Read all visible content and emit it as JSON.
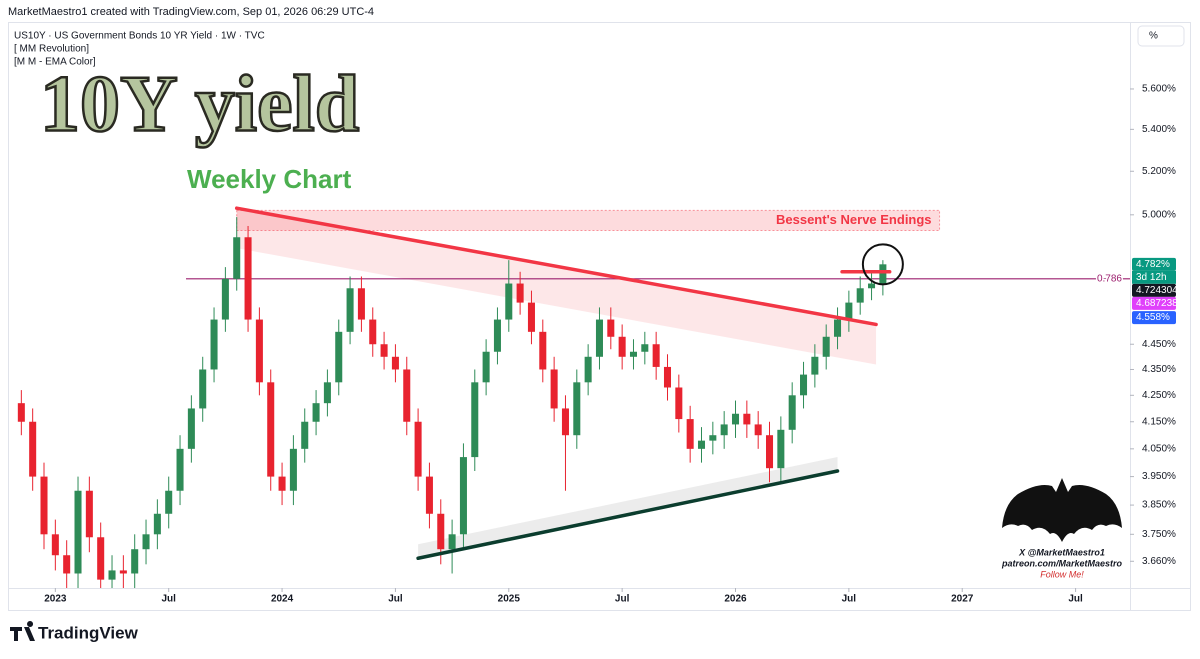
{
  "header": {
    "credit": "MarketMaestro1 created with TradingView.com, Sep 01, 2026 06:29 UTC-4",
    "symbol": "US10Y · US Government Bonds 10 YR Yield · 1W · TVC",
    "indicator_1": "[ MM Revolution]",
    "indicator_2": "[M M - EMA Color]",
    "overlay_title": "10Y yield",
    "overlay_subtitle": "Weekly Chart",
    "unit_button": "%"
  },
  "chart_data": {
    "type": "candlestick",
    "log_scale": true,
    "grid": false,
    "up_color": "#2e8b57",
    "down_color": "#e8232f",
    "x": [
      2022.85,
      2022.9,
      2022.95,
      2023.0,
      2023.05,
      2023.1,
      2023.15,
      2023.2,
      2023.25,
      2023.3,
      2023.35,
      2023.4,
      2023.45,
      2023.5,
      2023.55,
      2023.6,
      2023.65,
      2023.7,
      2023.75,
      2023.8,
      2023.85,
      2023.9,
      2023.95,
      2024.0,
      2024.05,
      2024.1,
      2024.15,
      2024.2,
      2024.25,
      2024.3,
      2024.35,
      2024.4,
      2024.45,
      2024.5,
      2024.55,
      2024.6,
      2024.65,
      2024.7,
      2024.75,
      2024.8,
      2024.85,
      2024.9,
      2024.95,
      2025.0,
      2025.05,
      2025.1,
      2025.15,
      2025.2,
      2025.25,
      2025.3,
      2025.35,
      2025.4,
      2025.45,
      2025.5,
      2025.55,
      2025.6,
      2025.65,
      2025.7,
      2025.75,
      2025.8,
      2025.85,
      2025.9,
      2025.95,
      2026.0,
      2026.05,
      2026.1,
      2026.15,
      2026.2,
      2026.25,
      2026.3,
      2026.35,
      2026.4,
      2026.45,
      2026.5,
      2026.55,
      2026.6,
      2026.65
    ],
    "open": [
      4.22,
      4.15,
      3.95,
      3.75,
      3.68,
      3.62,
      3.9,
      3.74,
      3.6,
      3.63,
      3.62,
      3.7,
      3.75,
      3.82,
      3.9,
      4.05,
      4.2,
      4.35,
      4.55,
      4.72,
      4.9,
      4.55,
      4.3,
      3.95,
      3.9,
      4.05,
      4.15,
      4.22,
      4.3,
      4.5,
      4.68,
      4.55,
      4.45,
      4.4,
      4.35,
      4.15,
      3.95,
      3.82,
      3.7,
      3.75,
      4.02,
      4.3,
      4.42,
      4.55,
      4.7,
      4.62,
      4.5,
      4.35,
      4.2,
      4.1,
      4.3,
      4.4,
      4.55,
      4.48,
      4.4,
      4.42,
      4.45,
      4.36,
      4.28,
      4.16,
      4.05,
      4.08,
      4.1,
      4.14,
      4.18,
      4.14,
      4.1,
      3.98,
      4.12,
      4.25,
      4.33,
      4.4,
      4.48,
      4.55,
      4.62,
      4.68,
      4.7
    ],
    "high": [
      4.27,
      4.2,
      4.0,
      3.8,
      3.73,
      3.95,
      3.95,
      3.79,
      3.68,
      3.68,
      3.75,
      3.8,
      3.87,
      3.95,
      4.1,
      4.25,
      4.4,
      4.6,
      4.77,
      4.99,
      4.95,
      4.6,
      4.35,
      4.0,
      4.1,
      4.2,
      4.27,
      4.35,
      4.55,
      4.73,
      4.73,
      4.6,
      4.5,
      4.45,
      4.4,
      4.2,
      4.0,
      3.87,
      3.8,
      4.07,
      4.35,
      4.47,
      4.6,
      4.8,
      4.75,
      4.67,
      4.55,
      4.4,
      4.25,
      4.35,
      4.45,
      4.6,
      4.6,
      4.53,
      4.47,
      4.5,
      4.5,
      4.41,
      4.33,
      4.21,
      4.13,
      4.15,
      4.19,
      4.23,
      4.23,
      4.19,
      4.15,
      4.17,
      4.3,
      4.38,
      4.45,
      4.53,
      4.6,
      4.67,
      4.73,
      4.75,
      4.8
    ],
    "low": [
      4.1,
      3.9,
      3.7,
      3.63,
      3.57,
      3.57,
      3.69,
      3.55,
      3.55,
      3.57,
      3.57,
      3.65,
      3.7,
      3.77,
      3.85,
      4.0,
      4.15,
      4.3,
      4.5,
      4.67,
      4.5,
      4.25,
      3.9,
      3.85,
      3.85,
      4.0,
      4.1,
      4.17,
      4.25,
      4.45,
      4.5,
      4.4,
      4.35,
      4.3,
      4.1,
      3.9,
      3.77,
      3.65,
      3.62,
      3.7,
      3.97,
      4.25,
      4.37,
      4.5,
      4.57,
      4.45,
      4.3,
      4.15,
      3.9,
      4.05,
      4.25,
      4.35,
      4.43,
      4.35,
      4.35,
      4.37,
      4.31,
      4.23,
      4.11,
      4.0,
      4.0,
      4.03,
      4.05,
      4.09,
      4.09,
      4.05,
      3.93,
      3.93,
      4.07,
      4.2,
      4.28,
      4.35,
      4.43,
      4.5,
      4.57,
      4.63,
      4.65
    ],
    "close": [
      4.15,
      3.95,
      3.75,
      3.68,
      3.62,
      3.9,
      3.74,
      3.6,
      3.63,
      3.62,
      3.7,
      3.75,
      3.82,
      3.9,
      4.05,
      4.2,
      4.35,
      4.55,
      4.72,
      4.9,
      4.55,
      4.3,
      3.95,
      3.9,
      4.05,
      4.15,
      4.22,
      4.3,
      4.5,
      4.68,
      4.55,
      4.45,
      4.4,
      4.35,
      4.15,
      3.95,
      3.82,
      3.7,
      3.75,
      4.02,
      4.3,
      4.42,
      4.55,
      4.7,
      4.62,
      4.5,
      4.35,
      4.2,
      4.1,
      4.3,
      4.4,
      4.55,
      4.48,
      4.4,
      4.42,
      4.45,
      4.36,
      4.28,
      4.16,
      4.05,
      4.08,
      4.1,
      4.14,
      4.18,
      4.14,
      4.1,
      3.98,
      4.12,
      4.25,
      4.33,
      4.4,
      4.48,
      4.55,
      4.62,
      4.68,
      4.7,
      4.782
    ],
    "xlim": [
      2022.8,
      2027.74
    ],
    "xticks": [
      {
        "value": 2023,
        "label": "2023"
      },
      {
        "value": 2023.5,
        "label": "Jul"
      },
      {
        "value": 2024,
        "label": "2024"
      },
      {
        "value": 2024.5,
        "label": "Jul"
      },
      {
        "value": 2025,
        "label": "2025"
      },
      {
        "value": 2025.5,
        "label": "Jul"
      },
      {
        "value": 2026,
        "label": "2026"
      },
      {
        "value": 2026.5,
        "label": "Jul"
      },
      {
        "value": 2027,
        "label": "2027"
      },
      {
        "value": 2027.5,
        "label": "Jul"
      }
    ],
    "ylim": [
      3.573,
      5.916
    ],
    "yticks": [
      {
        "value": 3.66,
        "label": "3.660%"
      },
      {
        "value": 3.75,
        "label": "3.750%"
      },
      {
        "value": 3.85,
        "label": "3.850%"
      },
      {
        "value": 3.95,
        "label": "3.950%"
      },
      {
        "value": 4.05,
        "label": "4.050%"
      },
      {
        "value": 4.15,
        "label": "4.150%"
      },
      {
        "value": 4.25,
        "label": "4.250%"
      },
      {
        "value": 4.35,
        "label": "4.350%"
      },
      {
        "value": 4.45,
        "label": "4.450%"
      },
      {
        "value": 5.0,
        "label": "5.000%"
      },
      {
        "value": 5.2,
        "label": "5.200%"
      },
      {
        "value": 5.4,
        "label": "5.400%"
      },
      {
        "value": 5.6,
        "label": "5.600%"
      }
    ],
    "trendlines": [
      {
        "x": [
          2023.8,
          2026.62
        ],
        "y": [
          5.03,
          4.53
        ],
        "color": "#f23645"
      },
      {
        "x": [
          2024.6,
          2026.45
        ],
        "y": [
          3.67,
          3.97
        ],
        "color": "#0b3d2e"
      },
      {
        "x": [
          2026.47,
          2026.68
        ],
        "y": [
          4.75,
          4.75
        ],
        "color": "#f23645"
      }
    ],
    "zones": [
      {
        "x": [
          2023.8,
          2026.9
        ],
        "y": [
          4.93,
          5.02
        ],
        "color": "#f23645",
        "label": "Bessent's Nerve Endings"
      }
    ],
    "fib_level": {
      "value": 4.72,
      "label": "0.786",
      "color": "#9c1f6e"
    },
    "price_labels": [
      {
        "value": 4.782,
        "label": "4.782%",
        "note": "3d 12h",
        "color": "#089981"
      },
      {
        "value": 4.724304,
        "color": "#131722"
      },
      {
        "value": 4.687238,
        "color": "#e040fb"
      },
      {
        "value": 4.558,
        "label": "4.558%",
        "color": "#2962ff"
      }
    ]
  },
  "watermark": {
    "handle": "X @MarketMaestro1",
    "site": "patreon.com/MarketMaestro",
    "cta": "Follow Me!"
  },
  "footer": {
    "brand": "TradingView"
  }
}
